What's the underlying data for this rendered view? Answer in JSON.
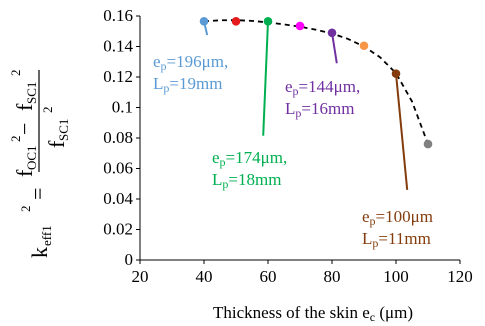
{
  "chart_data": {
    "type": "scatter",
    "xlabel": "Thickness of the skin e",
    "xlabel_sub": "c",
    "xlabel_unit": " (μm)",
    "ylabel": {
      "k": "k",
      "k_sub": "eff1",
      "k_sup": "2",
      "equals": "=",
      "num_f1": "f",
      "num_f1_sub": "OC1",
      "num_f1_sup": "2",
      "minus": "−",
      "num_f2": "f",
      "num_f2_sub": "SC1",
      "num_f2_sup": "2",
      "den_f": "f",
      "den_f_sub": "SC1",
      "den_f_sup": "2"
    },
    "xlim": [
      20,
      120
    ],
    "ylim": [
      0,
      0.16
    ],
    "x_ticks": [
      20,
      40,
      60,
      80,
      100,
      120
    ],
    "y_ticks": [
      "0",
      "0.02",
      "0.04",
      "0.06",
      "0.08",
      "0.1",
      "0.12",
      "0.14",
      "0.16"
    ],
    "y_tick_values": [
      0,
      0.02,
      0.04,
      0.06,
      0.08,
      0.1,
      0.12,
      0.14,
      0.16
    ],
    "points": [
      {
        "x": 40,
        "y": 0.1565,
        "color": "#5b9bd5"
      },
      {
        "x": 50,
        "y": 0.1565,
        "color": "#e41a1c"
      },
      {
        "x": 60,
        "y": 0.1565,
        "color": "#00b050"
      },
      {
        "x": 70,
        "y": 0.1535,
        "color": "#ff00ff"
      },
      {
        "x": 80,
        "y": 0.149,
        "color": "#7030a0"
      },
      {
        "x": 90,
        "y": 0.1405,
        "color": "#f79646"
      },
      {
        "x": 100,
        "y": 0.1222,
        "color": "#843c0c"
      },
      {
        "x": 110,
        "y": 0.076,
        "color": "#808080"
      }
    ],
    "fit_curve": {
      "style": "dashed",
      "color": "#000000",
      "x": [
        40,
        45,
        50,
        55,
        60,
        65,
        70,
        75,
        80,
        85,
        90,
        95,
        100,
        105,
        110
      ],
      "y": [
        0.1565,
        0.1572,
        0.1573,
        0.1568,
        0.1558,
        0.1545,
        0.153,
        0.151,
        0.1485,
        0.145,
        0.14,
        0.133,
        0.1225,
        0.104,
        0.076
      ]
    },
    "annotations": [
      {
        "line1": "e",
        "line1_sub": "p",
        "line1_rest": "=196μm,",
        "line2": "L",
        "line2_sub": "p",
        "line2_rest": "=19mm",
        "color": "#5b9bd5",
        "arrow_from": [
          41,
          0.1475
        ],
        "arrow_to": [
          40,
          0.1565
        ]
      },
      {
        "line1": "e",
        "line1_sub": "p",
        "line1_rest": "=174μm,",
        "line2": "L",
        "line2_sub": "p",
        "line2_rest": "=18mm",
        "color": "#00b050",
        "arrow_from": [
          58.5,
          0.0815
        ],
        "arrow_to": [
          60,
          0.1565
        ]
      },
      {
        "line1": "e",
        "line1_sub": "p",
        "line1_rest": "=144μm,",
        "line2": "L",
        "line2_sub": "p",
        "line2_rest": "=16mm",
        "color": "#7030a0",
        "arrow_from": [
          81.5,
          0.129
        ],
        "arrow_to": [
          80,
          0.149
        ]
      },
      {
        "line1": "e",
        "line1_sub": "p",
        "line1_rest": "=100μm",
        "line2": "L",
        "line2_sub": "p",
        "line2_rest": "=11mm",
        "color": "#843c0c",
        "arrow_from": [
          103.5,
          0.046
        ],
        "arrow_to": [
          100,
          0.1222
        ]
      }
    ],
    "grid": false,
    "legend": "none"
  }
}
